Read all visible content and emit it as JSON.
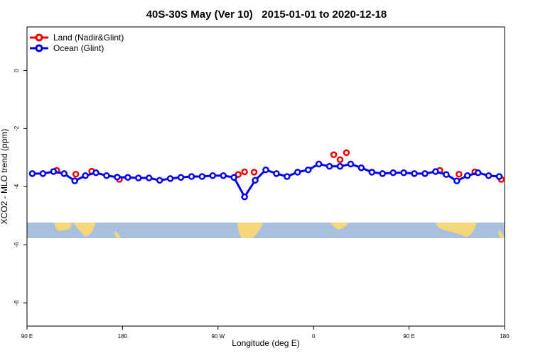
{
  "chart_data": {
    "type": "line",
    "title": "40S-30S May (Ver 10)   2015-01-01 to 2020-12-18",
    "x_label": "Longitude (deg E)",
    "y_label": "XCO2 - MLO trend (ppm)",
    "xlim": [
      90,
      540
    ],
    "ylim": [
      -8.8,
      1.5
    ],
    "xticks": [
      {
        "value": 90,
        "label": "90 E"
      },
      180,
      {
        "value": 270,
        "label": "90 W"
      },
      {
        "value": 360,
        "label": "0"
      },
      {
        "value": 450,
        "label": "90 E"
      },
      {
        "value": 540,
        "label": "180"
      }
    ],
    "yticks": [
      0,
      -2,
      -4,
      -6,
      -8
    ],
    "legend": "top-left",
    "series": [
      {
        "name": "Land (Nadir&Glint)",
        "color": "#ee0000",
        "line": false,
        "x": [
          118,
          136,
          151,
          177,
          289,
          295,
          304,
          379,
          385,
          391,
          479,
          497,
          512,
          537
        ],
        "values": [
          -3.44,
          -3.57,
          -3.47,
          -3.75,
          -3.58,
          -3.49,
          -3.5,
          -2.9,
          -3.07,
          -2.83,
          -3.44,
          -3.57,
          -3.49,
          -3.75
        ]
      },
      {
        "name": "Ocean (Glint)",
        "color": "#0000ee",
        "line": true,
        "x": [
          95,
          105,
          115,
          125,
          135,
          145,
          155,
          165,
          175,
          185,
          195,
          205,
          215,
          225,
          235,
          245,
          255,
          265,
          275,
          285,
          295,
          305,
          315,
          325,
          335,
          345,
          355,
          365,
          375,
          385,
          395,
          405,
          415,
          425,
          435,
          445,
          455,
          465,
          475,
          485,
          495,
          505,
          515,
          525,
          535
        ],
        "values": [
          -3.55,
          -3.55,
          -3.48,
          -3.55,
          -3.8,
          -3.62,
          -3.52,
          -3.62,
          -3.67,
          -3.68,
          -3.7,
          -3.7,
          -3.78,
          -3.72,
          -3.68,
          -3.65,
          -3.65,
          -3.62,
          -3.62,
          -3.68,
          -4.35,
          -3.78,
          -3.42,
          -3.55,
          -3.65,
          -3.5,
          -3.42,
          -3.22,
          -3.3,
          -3.3,
          -3.22,
          -3.35,
          -3.5,
          -3.55,
          -3.52,
          -3.52,
          -3.55,
          -3.55,
          -3.48,
          -3.58,
          -3.8,
          -3.62,
          -3.52,
          -3.62,
          -3.65
        ]
      }
    ]
  }
}
